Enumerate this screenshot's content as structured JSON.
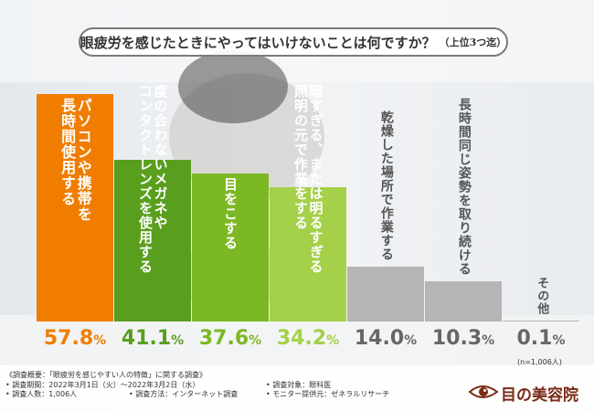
{
  "title": "眼疲労を感じたときにやってはいけないことは何ですか？",
  "title_suffix": "（上位3つ迄）",
  "chart_data": {
    "type": "bar",
    "title": "眼疲労を感じたときにやってはいけないことは何ですか？（上位3つ迄）",
    "unit": "%",
    "ylim": [
      0,
      60
    ],
    "categories": [
      "パソコンや携帯を長時間使用する",
      "度の合わないメガネやコンタクトレンズを使用する",
      "目をこする",
      "暗すぎる、または明るすぎる照明の元で作業をする",
      "乾燥した場所で作業する",
      "長時間同じ姿勢を取り続ける",
      "その他"
    ],
    "label_lines": [
      [
        "パソコンや携帯を",
        "長時間使用する"
      ],
      [
        "度の合わないメガネや",
        "コンタクトレンズを使用する"
      ],
      [
        "目をこする"
      ],
      [
        "暗すぎる、または明るすぎる",
        "照明の元で作業をする"
      ],
      [
        "乾燥した場所で作業する"
      ],
      [
        "長時間同じ姿勢を取り続ける"
      ],
      [
        "その他"
      ]
    ],
    "values": [
      57.8,
      41.1,
      37.6,
      34.2,
      14.0,
      10.3,
      0.1
    ],
    "value_labels": [
      [
        "57.8",
        "%"
      ],
      [
        "41.1",
        "%"
      ],
      [
        "37.6",
        "%"
      ],
      [
        "34.2",
        "%"
      ],
      [
        "14.0",
        "%"
      ],
      [
        "10.3",
        "%"
      ],
      [
        "0.1",
        "%"
      ]
    ],
    "colors": [
      "#f07d00",
      "#5a9e1e",
      "#7cb824",
      "#a5d04a",
      "#b5b5b5",
      "#b5b5b5",
      "#b5b5b5"
    ],
    "label_colors": [
      "light",
      "light",
      "light",
      "light",
      "dark",
      "dark",
      "dark"
    ],
    "pct_colors": [
      "#f07d00",
      "#5a9e1e",
      "#7cb824",
      "#a5d04a",
      "#666666",
      "#666666",
      "#666666"
    ]
  },
  "sample_note": "(n=1,006人)",
  "survey": {
    "heading": "《調査概要：「眼疲労を感じやすい人の特徴」に関する調査》",
    "period": "• 調査期間：2022年3月1日（火）～2022年3月2日（水）",
    "target": "• 調査対象：眼科医",
    "respondents": "• 調査人数：1,006人",
    "method": "• 調査方法：インターネット調査",
    "provider": "• モニター提供元：ゼネラルリサーチ"
  },
  "logo": "目の美容院"
}
